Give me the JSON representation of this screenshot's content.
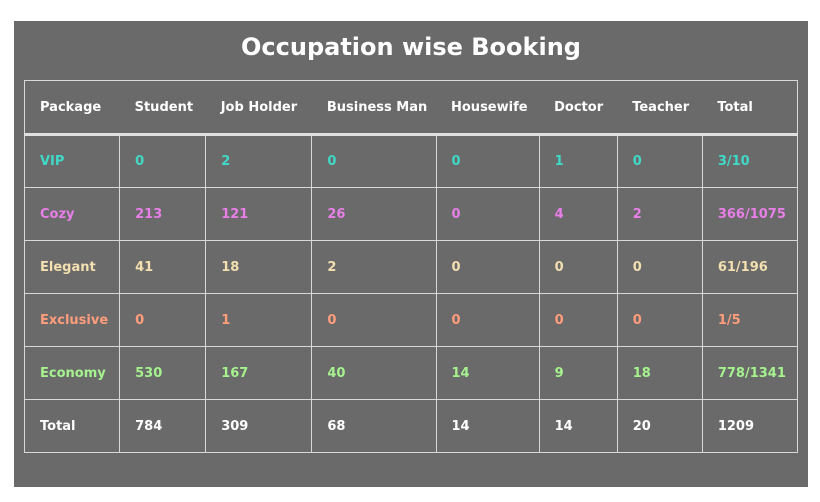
{
  "title": "Occupation wise Booking",
  "colors": {
    "vip": "#40d9c8",
    "cozy": "#e87fe8",
    "elegant": "#f3dfb0",
    "exclusive": "#ff9d7c",
    "economy": "#a5f28e",
    "total": "#ffffff"
  },
  "table": {
    "headers": [
      "Package",
      "Student",
      "Job Holder",
      "Business Man",
      "Housewife",
      "Doctor",
      "Teacher",
      "Total"
    ],
    "rows": [
      {
        "key": "vip",
        "cells": [
          "VIP",
          "0",
          "2",
          "0",
          "0",
          "1",
          "0",
          "3/10"
        ]
      },
      {
        "key": "cozy",
        "cells": [
          "Cozy",
          "213",
          "121",
          "26",
          "0",
          "4",
          "2",
          "366/1075"
        ]
      },
      {
        "key": "elegant",
        "cells": [
          "Elegant",
          "41",
          "18",
          "2",
          "0",
          "0",
          "0",
          "61/196"
        ]
      },
      {
        "key": "exclusive",
        "cells": [
          "Exclusive",
          "0",
          "1",
          "0",
          "0",
          "0",
          "0",
          "1/5"
        ]
      },
      {
        "key": "economy",
        "cells": [
          "Economy",
          "530",
          "167",
          "40",
          "14",
          "9",
          "18",
          "778/1341"
        ]
      },
      {
        "key": "total",
        "cells": [
          "Total",
          "784",
          "309",
          "68",
          "14",
          "14",
          "20",
          "1209"
        ]
      }
    ]
  }
}
